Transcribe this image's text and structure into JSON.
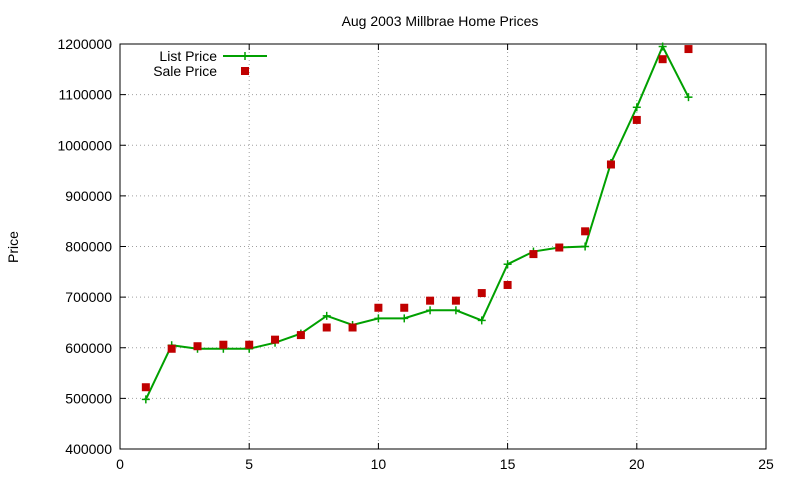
{
  "chart_data": {
    "type": "line",
    "title": "Aug 2003 Millbrae Home Prices",
    "xlabel": "",
    "ylabel": "Price",
    "xlim": [
      0,
      25
    ],
    "ylim": [
      400000,
      1200000
    ],
    "xticks": [
      0,
      5,
      10,
      15,
      20,
      25
    ],
    "yticks": [
      400000,
      500000,
      600000,
      700000,
      800000,
      900000,
      1000000,
      1100000,
      1200000
    ],
    "grid": true,
    "legend_position": "top-left",
    "series": [
      {
        "name": "List Price",
        "style": "line-with-plus-markers",
        "color": "#00a000",
        "points": [
          {
            "x": 1,
            "y": 498000
          },
          {
            "x": 2,
            "y": 605000
          },
          {
            "x": 3,
            "y": 598000
          },
          {
            "x": 4,
            "y": 598000
          },
          {
            "x": 5,
            "y": 598000
          },
          {
            "x": 6,
            "y": 610000
          },
          {
            "x": 7,
            "y": 628000
          },
          {
            "x": 8,
            "y": 663000
          },
          {
            "x": 9,
            "y": 645000
          },
          {
            "x": 10,
            "y": 658000
          },
          {
            "x": 11,
            "y": 658000
          },
          {
            "x": 12,
            "y": 674000
          },
          {
            "x": 13,
            "y": 674000
          },
          {
            "x": 14,
            "y": 654000
          },
          {
            "x": 15,
            "y": 765000
          },
          {
            "x": 16,
            "y": 790000
          },
          {
            "x": 17,
            "y": 798000
          },
          {
            "x": 18,
            "y": 800000
          },
          {
            "x": 19,
            "y": 965000
          },
          {
            "x": 20,
            "y": 1075000
          },
          {
            "x": 21,
            "y": 1195000
          },
          {
            "x": 22,
            "y": 1095000
          }
        ]
      },
      {
        "name": "Sale Price",
        "style": "square-markers",
        "color": "#c00000",
        "points": [
          {
            "x": 1,
            "y": 522000
          },
          {
            "x": 2,
            "y": 598000
          },
          {
            "x": 3,
            "y": 603000
          },
          {
            "x": 4,
            "y": 606000
          },
          {
            "x": 5,
            "y": 606000
          },
          {
            "x": 6,
            "y": 616000
          },
          {
            "x": 7,
            "y": 625000
          },
          {
            "x": 8,
            "y": 640000
          },
          {
            "x": 9,
            "y": 640000
          },
          {
            "x": 10,
            "y": 679000
          },
          {
            "x": 11,
            "y": 679000
          },
          {
            "x": 12,
            "y": 693000
          },
          {
            "x": 13,
            "y": 693000
          },
          {
            "x": 14,
            "y": 708000
          },
          {
            "x": 15,
            "y": 724000
          },
          {
            "x": 16,
            "y": 785000
          },
          {
            "x": 17,
            "y": 798000
          },
          {
            "x": 18,
            "y": 830000
          },
          {
            "x": 19,
            "y": 962000
          },
          {
            "x": 20,
            "y": 1050000
          },
          {
            "x": 21,
            "y": 1170000
          },
          {
            "x": 22,
            "y": 1190000
          }
        ]
      }
    ]
  }
}
